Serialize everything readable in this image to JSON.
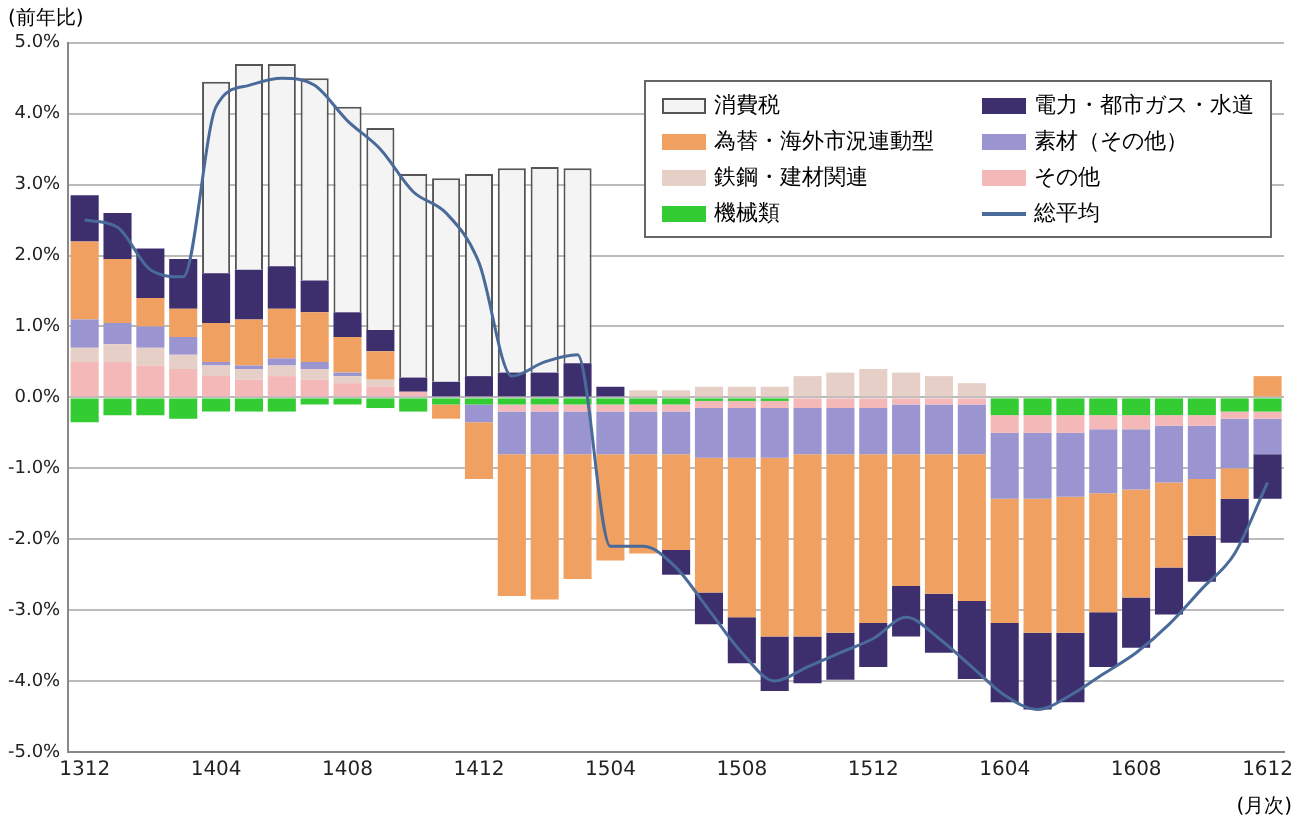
{
  "chart_data": {
    "type": "bar",
    "stacked": true,
    "ylabel": "(前年比)",
    "annotations": [
      "(月次)"
    ],
    "categories": [
      "1312",
      null,
      null,
      null,
      "1404",
      null,
      null,
      null,
      "1408",
      null,
      null,
      null,
      "1412",
      null,
      null,
      null,
      "1504",
      null,
      null,
      null,
      "1508",
      null,
      null,
      null,
      "1512",
      null,
      null,
      null,
      "1604",
      null,
      null,
      null,
      "1608",
      null,
      null,
      null,
      "1612"
    ],
    "ylim": [
      -5,
      5
    ],
    "yticks": [
      {
        "value": -5,
        "label": "-5.0%"
      },
      {
        "value": -4,
        "label": "-4.0%"
      },
      {
        "value": -3,
        "label": "-3.0%"
      },
      {
        "value": -2,
        "label": "-2.0%"
      },
      {
        "value": -1,
        "label": "-1.0%"
      },
      {
        "value": 0,
        "label": "0.0%"
      },
      {
        "value": 1,
        "label": "1.0%"
      },
      {
        "value": 2,
        "label": "2.0%"
      },
      {
        "value": 3,
        "label": "3.0%"
      },
      {
        "value": 4,
        "label": "4.0%"
      },
      {
        "value": 5,
        "label": "5.0%"
      }
    ],
    "grid": "y",
    "legend": "top right",
    "marker": "none",
    "series": [
      {
        "name": "機械類",
        "color": "#33cc33",
        "values": [
          -0.35,
          -0.25,
          -0.25,
          -0.3,
          -0.2,
          -0.2,
          -0.2,
          -0.1,
          -0.1,
          -0.15,
          -0.2,
          -0.1,
          -0.1,
          -0.1,
          -0.1,
          -0.1,
          -0.1,
          -0.1,
          -0.1,
          -0.05,
          -0.05,
          -0.05,
          0,
          0,
          0,
          0,
          0,
          0,
          -0.25,
          -0.25,
          -0.25,
          -0.25,
          -0.25,
          -0.25,
          -0.25,
          -0.2,
          -0.2
        ]
      },
      {
        "name": "その他",
        "color": "#f4b8b8",
        "values": [
          0.5,
          0.5,
          0.45,
          0.4,
          0.3,
          0.25,
          0.3,
          0.25,
          0.2,
          0.15,
          0.08,
          0,
          0,
          -0.1,
          -0.1,
          -0.1,
          -0.1,
          -0.1,
          -0.1,
          -0.1,
          -0.1,
          -0.1,
          -0.15,
          -0.15,
          -0.15,
          -0.1,
          -0.1,
          -0.1,
          -0.25,
          -0.25,
          -0.25,
          -0.2,
          -0.2,
          -0.15,
          -0.15,
          -0.1,
          -0.1
        ]
      },
      {
        "name": "鉄鋼・建材関連",
        "color": "#e6cfc6",
        "values": [
          0.2,
          0.25,
          0.25,
          0.2,
          0.15,
          0.15,
          0.15,
          0.15,
          0.1,
          0.1,
          0,
          0,
          0,
          0,
          0,
          0,
          0,
          0.1,
          0.1,
          0.15,
          0.15,
          0.15,
          0.3,
          0.35,
          0.4,
          0.35,
          0.3,
          0.2,
          0,
          0,
          0,
          0,
          0,
          0,
          0,
          0,
          0
        ]
      },
      {
        "name": "素材（その他）",
        "color": "#9a94d0",
        "values": [
          0.4,
          0.3,
          0.3,
          0.25,
          0.05,
          0.05,
          0.1,
          0.1,
          0.05,
          0,
          0,
          0,
          -0.25,
          -0.6,
          -0.6,
          -0.6,
          -0.6,
          -0.6,
          -0.6,
          -0.7,
          -0.7,
          -0.7,
          -0.65,
          -0.65,
          -0.65,
          -0.7,
          -0.7,
          -0.7,
          -0.93,
          -0.93,
          -0.9,
          -0.9,
          -0.85,
          -0.8,
          -0.75,
          -0.7,
          -0.5
        ]
      },
      {
        "name": "為替・海外市況連動型",
        "color": "#f0a060",
        "values": [
          1.1,
          0.9,
          0.4,
          0.4,
          0.55,
          0.65,
          0.7,
          0.7,
          0.5,
          0.4,
          0,
          -0.2,
          -0.8,
          -2.0,
          -2.05,
          -1.76,
          -1.5,
          -1.4,
          -1.35,
          -1.9,
          -2.25,
          -2.52,
          -2.57,
          -2.52,
          -2.38,
          -1.86,
          -1.97,
          -2.07,
          -1.75,
          -1.89,
          -1.92,
          -1.68,
          -1.52,
          -1.2,
          -0.8,
          -0.43,
          0.3
        ]
      },
      {
        "name": "電力・都市ガス・水道",
        "color": "#3d2f6e",
        "values": [
          0.65,
          0.65,
          0.7,
          0.7,
          0.7,
          0.7,
          0.6,
          0.45,
          0.35,
          0.3,
          0.2,
          0.22,
          0.3,
          0.35,
          0.35,
          0.48,
          0.15,
          0,
          -0.35,
          -0.45,
          -0.65,
          -0.77,
          -0.66,
          -0.66,
          -0.62,
          -0.71,
          -0.83,
          -1.1,
          -1.12,
          -1.08,
          -0.98,
          -0.77,
          -0.71,
          -0.66,
          -0.65,
          -0.62,
          -0.63
        ]
      },
      {
        "name": "消費税",
        "color": "#f4f4f4",
        "values": [
          0,
          0,
          0,
          0,
          2.7,
          2.9,
          2.85,
          2.85,
          2.9,
          2.85,
          2.87,
          2.87,
          2.85,
          2.88,
          2.9,
          2.75,
          0,
          0,
          0,
          0,
          0,
          0,
          0,
          0,
          0,
          0,
          0,
          0,
          0,
          0,
          0,
          0,
          0,
          0,
          0,
          0,
          0
        ]
      },
      {
        "name": "総平均",
        "type": "line",
        "color": "#4a6a9a",
        "values": [
          2.5,
          2.4,
          1.8,
          1.7,
          4.1,
          4.4,
          4.5,
          4.4,
          3.9,
          3.5,
          2.9,
          2.6,
          1.9,
          0.3,
          0.5,
          0.6,
          -2.1,
          -2.1,
          -2.4,
          -3.0,
          -3.6,
          -4.0,
          -3.8,
          -3.6,
          -3.4,
          -3.1,
          -3.4,
          -3.8,
          -4.2,
          -4.4,
          -4.2,
          -3.9,
          -3.6,
          -3.2,
          -2.7,
          -2.2,
          -1.2
        ]
      }
    ]
  }
}
